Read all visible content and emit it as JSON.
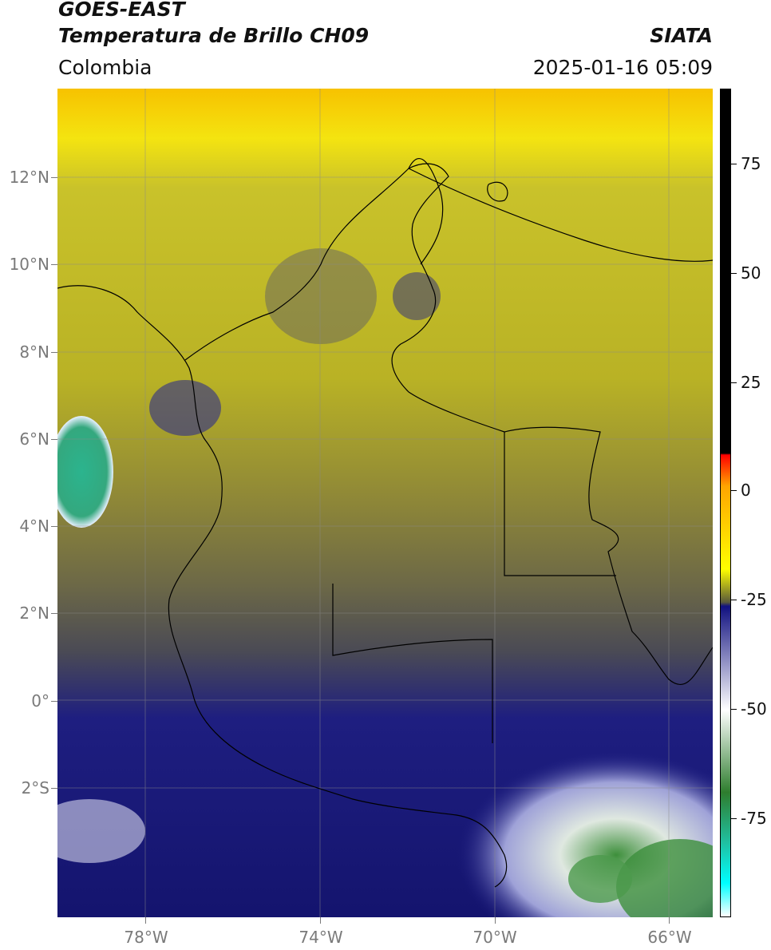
{
  "header": {
    "line1": "GOES-EAST",
    "line2": "Temperatura de Brillo CH09",
    "region": "Colombia",
    "brand": "SIATA",
    "timestamp": "2025-01-16 05:09"
  },
  "map": {
    "latitude_labels": [
      "12°N",
      "10°N",
      "8°N",
      "6°N",
      "4°N",
      "2°N",
      "0°",
      "2°S"
    ],
    "longitude_labels": [
      "78°W",
      "74°W",
      "70°W",
      "66°W"
    ],
    "colors": {
      "cloud_top_warm": "#b9b21f",
      "clear_ocean_north": "#f3c400",
      "mid_gray": "#6f6a45",
      "deep_blue": "#1a1a80",
      "white_cold": "#f2f2f2",
      "green_cold": "#3c8f3c",
      "teal_cold": "#2bb38f",
      "border": "#000000"
    }
  },
  "colorbar": {
    "labels": [
      "75",
      "50",
      "25",
      "0",
      "-25",
      "-50",
      "-75"
    ],
    "stops": [
      "#000000",
      "#000000",
      "#ff0000",
      "#ffa500",
      "#ffff00",
      "#5a5a3a",
      "#111180",
      "#ffffff",
      "#2e7d2e",
      "#20c0a0",
      "#00ffff",
      "#ffffff"
    ]
  }
}
